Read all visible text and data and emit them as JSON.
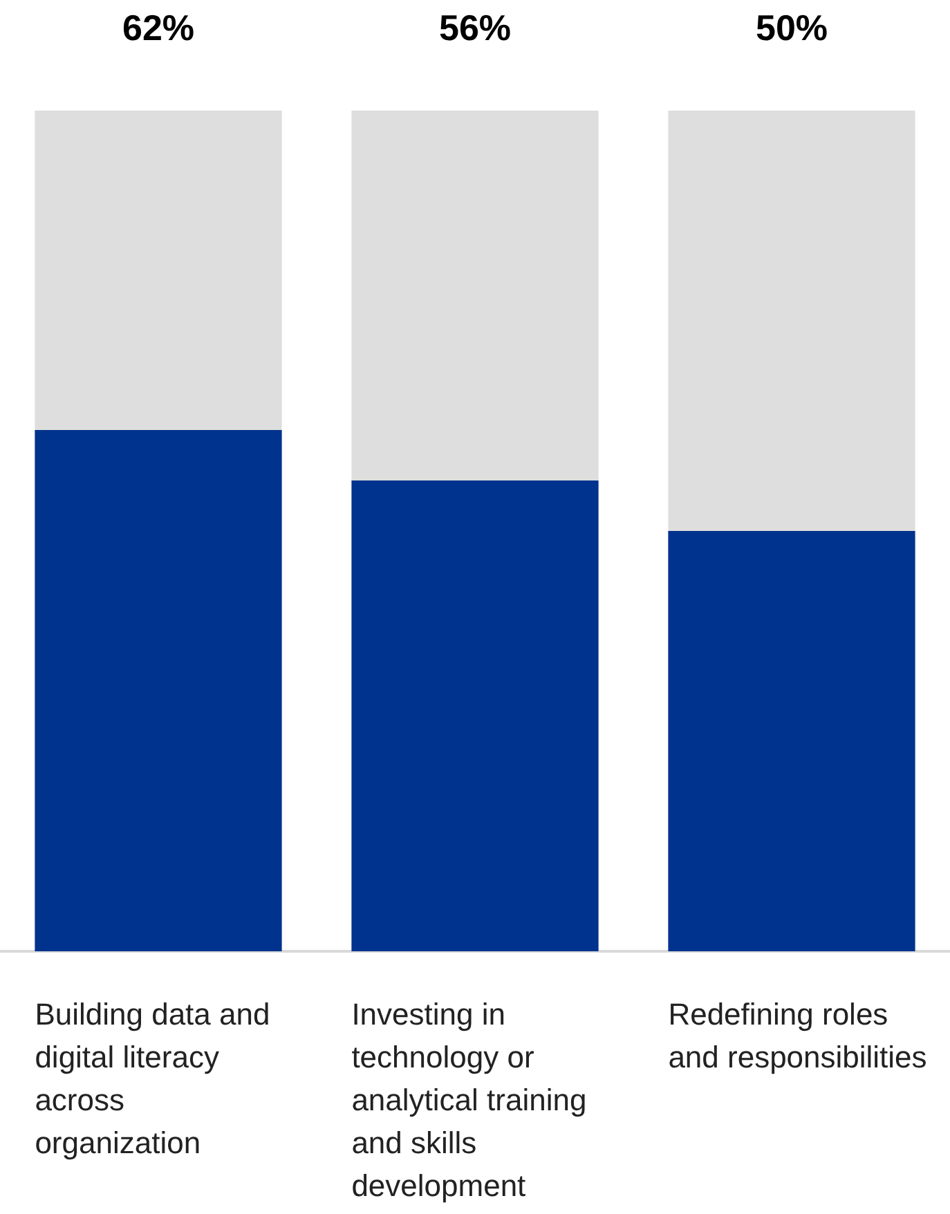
{
  "chart_data": {
    "type": "bar",
    "stacked": true,
    "categories": [
      "Building data and digital literacy across organization",
      "Investing in technology or analytical training and skills development",
      "Redefining roles and responsibilities"
    ],
    "series": [
      {
        "color": "#00338d",
        "values": [
          62,
          56,
          50
        ],
        "value_labels": [
          "62%",
          "56%",
          "50%"
        ]
      },
      {
        "color": "#dedede",
        "values": [
          38,
          44,
          50
        ]
      }
    ],
    "ylim": [
      0,
      100
    ],
    "tick_labels": "x",
    "grid": false,
    "legend": false
  }
}
